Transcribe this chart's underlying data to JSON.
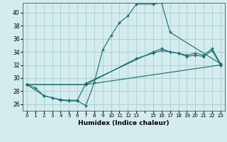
{
  "xlabel": "Humidex (Indice chaleur)",
  "background_color": "#d4ecee",
  "grid_color": "#a8cdd1",
  "line_color": "#1a6b6e",
  "xlim": [
    -0.5,
    23.5
  ],
  "ylim": [
    25.0,
    41.5
  ],
  "yticks": [
    26,
    28,
    30,
    32,
    34,
    36,
    38,
    40
  ],
  "xtick_labels": [
    "0",
    "1",
    "2",
    "3",
    "4",
    "5",
    "6",
    "7",
    "8",
    "9",
    "10",
    "11",
    "12",
    "13",
    "",
    "15",
    "16",
    "17",
    "18",
    "19",
    "20",
    "21",
    "22",
    "23"
  ],
  "xtick_positions": [
    0,
    1,
    2,
    3,
    4,
    5,
    6,
    7,
    8,
    9,
    10,
    11,
    12,
    13,
    14,
    15,
    16,
    17,
    18,
    19,
    20,
    21,
    22,
    23
  ],
  "curve1_x": [
    0,
    1,
    2,
    3,
    4,
    5,
    6,
    7,
    8,
    9,
    10,
    11,
    12,
    13,
    15,
    16,
    17,
    23
  ],
  "curve1_y": [
    29.0,
    28.5,
    27.3,
    27.0,
    26.6,
    26.5,
    26.5,
    25.8,
    29.3,
    34.3,
    36.5,
    38.5,
    39.5,
    41.3,
    41.3,
    41.5,
    37.0,
    32.2
  ],
  "curve2_x": [
    0,
    2,
    3,
    4,
    5,
    6,
    7,
    15,
    16,
    17,
    18,
    19,
    20,
    21,
    22,
    23
  ],
  "curve2_y": [
    29.0,
    27.3,
    27.0,
    26.7,
    26.6,
    26.6,
    29.2,
    34.0,
    34.5,
    34.0,
    33.8,
    33.5,
    33.8,
    33.5,
    34.5,
    32.2
  ],
  "curve3_x": [
    0,
    7,
    13,
    15,
    16,
    17,
    18,
    19,
    20,
    21,
    22,
    23
  ],
  "curve3_y": [
    29.0,
    29.0,
    33.0,
    33.8,
    34.2,
    34.0,
    33.8,
    33.3,
    33.5,
    33.3,
    34.2,
    32.0
  ],
  "curve4_x": [
    0,
    7,
    23
  ],
  "curve4_y": [
    29.0,
    29.0,
    32.0
  ]
}
